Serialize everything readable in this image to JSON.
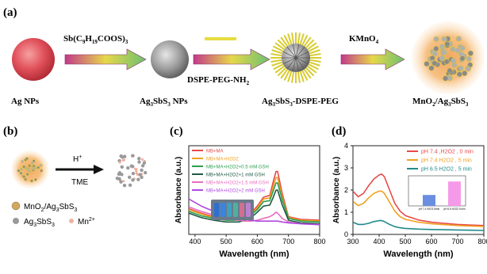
{
  "panel_a": {
    "label": "(a)",
    "reagent1": "Sb(C9H19COOS)3",
    "reagent2": "DSPE-PEG-NH2",
    "reagent3": "KMnO4",
    "stages": [
      "Ag NPs",
      "Ag3SbS3 NPs",
      "Ag3SbS3-DSPE-PEG",
      "MnO2/Ag3SbS3"
    ]
  },
  "panel_b": {
    "label": "(b)",
    "arrow_top": "H+",
    "arrow_bottom": "TME",
    "legend": [
      "MnO2/Ag3SbS3",
      "Ag3SbS3",
      "Mn2+"
    ]
  },
  "panel_c": {
    "label": "(c)",
    "chart_data": {
      "type": "line",
      "xlabel": "Wavelength (nm)",
      "ylabel": "Absorbance (a.u.)",
      "xlim": [
        380,
        800
      ],
      "xticks": [
        400,
        500,
        600,
        700,
        800
      ],
      "series": [
        {
          "name": "MB+MA",
          "color": "#e64b4b",
          "x": [
            380,
            420,
            460,
            500,
            540,
            560,
            580,
            600,
            620,
            640,
            650,
            660,
            665,
            680,
            700,
            740,
            800
          ],
          "y": [
            0.29,
            0.24,
            0.2,
            0.18,
            0.18,
            0.2,
            0.24,
            0.32,
            0.42,
            0.44,
            0.58,
            0.71,
            0.71,
            0.46,
            0.2,
            0.17,
            0.16
          ]
        },
        {
          "name": "MB+MA+H2O2",
          "color": "#f0a020",
          "x": [
            380,
            420,
            460,
            500,
            540,
            560,
            580,
            600,
            620,
            640,
            650,
            660,
            665,
            680,
            700,
            740,
            800
          ],
          "y": [
            0.28,
            0.23,
            0.19,
            0.17,
            0.17,
            0.19,
            0.23,
            0.3,
            0.4,
            0.41,
            0.53,
            0.64,
            0.64,
            0.42,
            0.19,
            0.16,
            0.15
          ]
        },
        {
          "name": "MB+MA+H2O2+0.5 mM GSH",
          "color": "#2f9e4f",
          "x": [
            380,
            420,
            460,
            500,
            540,
            560,
            580,
            600,
            620,
            640,
            650,
            660,
            665,
            680,
            700,
            740,
            800
          ],
          "y": [
            0.26,
            0.21,
            0.18,
            0.16,
            0.16,
            0.18,
            0.22,
            0.28,
            0.37,
            0.38,
            0.48,
            0.58,
            0.58,
            0.39,
            0.18,
            0.15,
            0.14
          ]
        },
        {
          "name": "MB+MA+H2O2+1 mM GSH",
          "color": "#1f5a44",
          "x": [
            380,
            420,
            460,
            500,
            540,
            560,
            580,
            600,
            620,
            640,
            650,
            660,
            665,
            680,
            700,
            740,
            800
          ],
          "y": [
            0.24,
            0.19,
            0.16,
            0.14,
            0.14,
            0.16,
            0.19,
            0.25,
            0.32,
            0.33,
            0.41,
            0.5,
            0.5,
            0.33,
            0.16,
            0.13,
            0.12
          ]
        },
        {
          "name": "MB+MA+H2O2+1.5 mM GSH",
          "color": "#e86cc0",
          "x": [
            380,
            420,
            460,
            500,
            540,
            560,
            580,
            600,
            620,
            640,
            650,
            660,
            665,
            680,
            700,
            740,
            800
          ],
          "y": [
            0.31,
            0.26,
            0.22,
            0.18,
            0.16,
            0.15,
            0.15,
            0.16,
            0.18,
            0.2,
            0.22,
            0.25,
            0.24,
            0.18,
            0.14,
            0.12,
            0.11
          ]
        },
        {
          "name": "MB+MA+H2O2+2 mM GSH",
          "color": "#b048e0",
          "x": [
            380,
            420,
            460,
            500,
            540,
            560,
            580,
            600,
            620,
            640,
            650,
            660,
            665,
            680,
            700,
            740,
            800
          ],
          "y": [
            0.4,
            0.32,
            0.26,
            0.22,
            0.19,
            0.17,
            0.16,
            0.15,
            0.15,
            0.15,
            0.15,
            0.15,
            0.15,
            0.14,
            0.13,
            0.12,
            0.11
          ]
        }
      ]
    }
  },
  "panel_d": {
    "label": "(d)",
    "chart_data": {
      "type": "line",
      "xlabel": "Wavelength (nm)",
      "ylabel": "Absorbance (a.u.)",
      "xlim": [
        300,
        800
      ],
      "ylim": [
        0,
        4
      ],
      "xticks": [
        300,
        400,
        500,
        600,
        700,
        800
      ],
      "yticks": [
        0,
        1,
        2,
        3,
        4
      ],
      "series": [
        {
          "name": "pH 7.4 ,H2O2 , 0 min",
          "color": "#e64b4b",
          "x": [
            300,
            320,
            340,
            360,
            380,
            400,
            410,
            420,
            440,
            460,
            480,
            500,
            550,
            600,
            650,
            700,
            750,
            800
          ],
          "y": [
            1.95,
            1.7,
            1.85,
            2.2,
            2.5,
            2.68,
            2.72,
            2.6,
            2.0,
            1.4,
            1.05,
            0.85,
            0.65,
            0.55,
            0.5,
            0.45,
            0.42,
            0.4
          ]
        },
        {
          "name": "pH 7.4 H2O2 , 5 min",
          "color": "#f0a020",
          "x": [
            300,
            320,
            340,
            360,
            380,
            400,
            410,
            420,
            440,
            460,
            480,
            500,
            550,
            600,
            650,
            700,
            750,
            800
          ],
          "y": [
            1.5,
            1.3,
            1.4,
            1.65,
            1.85,
            1.95,
            1.95,
            1.85,
            1.45,
            1.05,
            0.8,
            0.68,
            0.55,
            0.48,
            0.44,
            0.4,
            0.38,
            0.36
          ]
        },
        {
          "name": "pH 6.5 H2O2 , 5 min",
          "color": "#1f8a8a",
          "x": [
            300,
            320,
            340,
            360,
            380,
            400,
            410,
            420,
            440,
            460,
            480,
            500,
            550,
            600,
            650,
            700,
            750,
            800
          ],
          "y": [
            0.55,
            0.45,
            0.45,
            0.5,
            0.58,
            0.62,
            0.62,
            0.58,
            0.45,
            0.35,
            0.3,
            0.27,
            0.24,
            0.22,
            0.21,
            0.2,
            0.19,
            0.18
          ]
        }
      ],
      "inset": {
        "categories": [
          "pH 7.4 H2O2 5min",
          "pH 6.5 H2O2 5 min"
        ],
        "values": [
          0.65,
          1.45
        ],
        "colors": [
          "#6a8ee0",
          "#f59ae8"
        ]
      }
    }
  }
}
